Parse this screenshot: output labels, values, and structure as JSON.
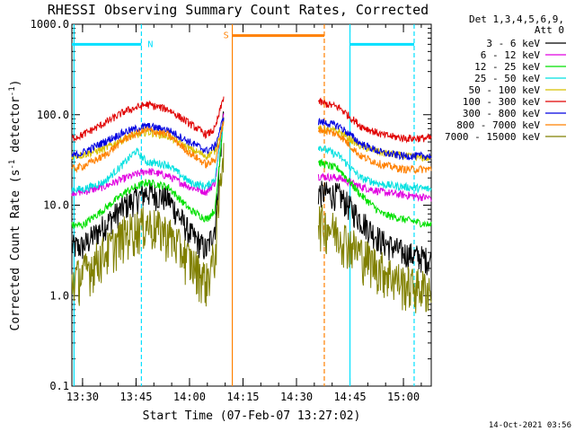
{
  "chart_data": {
    "type": "line",
    "title": "RHESSI Observing Summary Count Rates, Corrected",
    "xlabel": "Start Time (07-Feb-07 13:27:02)",
    "ylabel_parts": [
      "Corrected Count Rate (s",
      "-1",
      " detector",
      "-1",
      ")"
    ],
    "y_scale": "log",
    "xlim": [
      13.45,
      15.13
    ],
    "ylim": [
      0.1,
      1000
    ],
    "x_ticks": [
      {
        "v": 13.5,
        "label": "13:30"
      },
      {
        "v": 13.75,
        "label": "13:45"
      },
      {
        "v": 14.0,
        "label": "14:00"
      },
      {
        "v": 14.25,
        "label": "14:15"
      },
      {
        "v": 14.5,
        "label": "14:30"
      },
      {
        "v": 14.75,
        "label": "14:45"
      },
      {
        "v": 15.0,
        "label": "15:00"
      }
    ],
    "y_ticks": [
      {
        "v": 0.1,
        "label": "0.1"
      },
      {
        "v": 1,
        "label": "1.0"
      },
      {
        "v": 10,
        "label": "10.0"
      },
      {
        "v": 100,
        "label": "100.0"
      },
      {
        "v": 1000,
        "label": "1000.0"
      }
    ],
    "legend_header": [
      "Det 1,3,4,5,6,9,",
      "Att 0"
    ],
    "legend_placement": "right",
    "timestamp": "14-Oct-2021 03:56",
    "data_gaps": [
      [
        14.16,
        14.6
      ]
    ],
    "series": [
      {
        "name": "3 - 6 keV",
        "color": "#000000",
        "x": [
          13.45,
          13.5,
          13.6,
          13.7,
          13.8,
          13.9,
          14.0,
          14.08,
          14.12,
          14.16,
          14.6,
          14.7,
          14.8,
          14.9,
          15.0,
          15.13
        ],
        "values": [
          3.5,
          3.5,
          6,
          10,
          14,
          12,
          5,
          3.2,
          6,
          120,
          14,
          13,
          7,
          4,
          3,
          2.5
        ]
      },
      {
        "name": "6 - 12 keV",
        "color": "#e000e0",
        "x": [
          13.45,
          13.5,
          13.6,
          13.7,
          13.8,
          13.9,
          14.0,
          14.08,
          14.12,
          14.16,
          14.6,
          14.7,
          14.8,
          14.9,
          15.0,
          15.13
        ],
        "values": [
          14,
          14,
          16,
          20,
          24,
          21,
          16,
          14,
          18,
          110,
          21,
          20,
          16,
          14,
          13,
          12
        ]
      },
      {
        "name": "12 - 25 keV",
        "color": "#00e000",
        "x": [
          13.45,
          13.5,
          13.6,
          13.7,
          13.8,
          13.9,
          14.0,
          14.08,
          14.12,
          14.16,
          14.6,
          14.7,
          14.8,
          14.9,
          15.0,
          15.13
        ],
        "values": [
          6,
          6,
          9,
          14,
          18,
          16,
          9,
          7,
          9,
          100,
          30,
          25,
          13,
          8,
          7,
          6
        ]
      },
      {
        "name": "25 - 50 keV",
        "color": "#00e0e0",
        "x": [
          13.45,
          13.5,
          13.6,
          13.7,
          13.75,
          13.8,
          13.9,
          14.0,
          14.08,
          14.12,
          14.16,
          14.6,
          14.7,
          14.8,
          14.9,
          15.0,
          15.13
        ],
        "values": [
          15,
          15,
          18,
          30,
          40,
          30,
          28,
          18,
          16,
          20,
          90,
          45,
          35,
          20,
          17,
          16,
          15
        ]
      },
      {
        "name": "50 - 100 keV",
        "color": "#d8c000",
        "x": [
          13.45,
          13.5,
          13.6,
          13.7,
          13.8,
          13.9,
          14.0,
          14.08,
          14.12,
          14.16,
          14.6,
          14.7,
          14.8,
          14.9,
          15.0,
          15.13
        ],
        "values": [
          35,
          36,
          42,
          55,
          65,
          58,
          42,
          35,
          40,
          85,
          70,
          65,
          45,
          38,
          35,
          33
        ]
      },
      {
        "name": "100 - 300 keV",
        "color": "#e00000",
        "x": [
          13.45,
          13.5,
          13.6,
          13.7,
          13.8,
          13.9,
          14.0,
          14.08,
          14.12,
          14.16,
          14.6,
          14.7,
          14.8,
          14.9,
          15.0,
          15.13
        ],
        "values": [
          55,
          60,
          80,
          110,
          130,
          115,
          80,
          60,
          70,
          160,
          140,
          120,
          75,
          60,
          55,
          55
        ]
      },
      {
        "name": "300 - 800 keV",
        "color": "#0000e0",
        "x": [
          13.45,
          13.5,
          13.6,
          13.7,
          13.8,
          13.9,
          14.0,
          14.08,
          14.12,
          14.16,
          14.6,
          14.7,
          14.8,
          14.9,
          15.0,
          15.13
        ],
        "values": [
          35,
          38,
          50,
          65,
          75,
          68,
          50,
          40,
          45,
          95,
          85,
          75,
          48,
          38,
          35,
          35
        ]
      },
      {
        "name": "800 - 7000 keV",
        "color": "#ff8000",
        "x": [
          13.45,
          13.5,
          13.6,
          13.7,
          13.8,
          13.9,
          14.0,
          14.08,
          14.12,
          14.16,
          14.6,
          14.7,
          14.8,
          14.9,
          15.0,
          15.13
        ],
        "values": [
          25,
          27,
          35,
          55,
          68,
          60,
          38,
          28,
          32,
          80,
          70,
          60,
          35,
          28,
          25,
          25
        ]
      },
      {
        "name": "7000 - 15000 keV",
        "color": "#808000",
        "x": [
          13.45,
          13.5,
          13.6,
          13.7,
          13.8,
          13.9,
          14.0,
          14.08,
          14.12,
          14.16,
          14.6,
          14.7,
          14.8,
          14.9,
          15.0,
          15.13
        ],
        "values": [
          1.5,
          1.8,
          3,
          5,
          6.5,
          5,
          2.5,
          1.5,
          3,
          55,
          7,
          5,
          3,
          2,
          1.4,
          1.2
        ]
      }
    ],
    "annotations": [
      {
        "label": "N",
        "color": "#00e0ff",
        "x_start": 13.45,
        "x_end": 13.775,
        "bar_y": 600
      },
      {
        "label": "S",
        "color": "#ff8000",
        "x_start": 14.2,
        "x_end": 14.63,
        "bar_y": 750
      },
      {
        "label": "",
        "color": "#00e0ff",
        "x_start": 14.75,
        "x_end": 15.05,
        "bar_y": 600
      }
    ],
    "vertical_lines": [
      {
        "x": 13.46,
        "color": "#00e0ff",
        "style": "solid"
      },
      {
        "x": 13.775,
        "color": "#00e0ff",
        "style": "dashed"
      },
      {
        "x": 14.2,
        "color": "#ff8000",
        "style": "solid"
      },
      {
        "x": 14.63,
        "color": "#ff8000",
        "style": "dashed"
      },
      {
        "x": 14.75,
        "color": "#00e0ff",
        "style": "solid"
      },
      {
        "x": 15.05,
        "color": "#00e0ff",
        "style": "dashed"
      }
    ]
  }
}
